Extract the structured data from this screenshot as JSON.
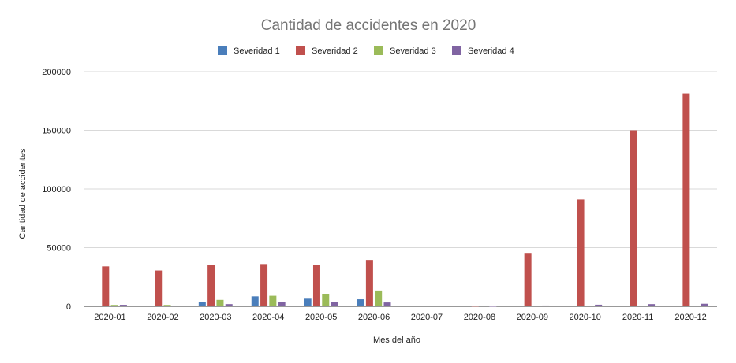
{
  "chart_data": {
    "type": "bar",
    "title": "Cantidad de accidentes en 2020",
    "xlabel": "Mes del año",
    "ylabel": "Cantidad de accidentes",
    "categories": [
      "2020-01",
      "2020-02",
      "2020-03",
      "2020-04",
      "2020-05",
      "2020-06",
      "2020-07",
      "2020-08",
      "2020-09",
      "2020-10",
      "2020-11",
      "2020-12"
    ],
    "series": [
      {
        "name": "Severidad 1",
        "color": "#4a7ebb",
        "values": [
          0,
          0,
          4000,
          8500,
          6500,
          6000,
          0,
          0,
          0,
          0,
          0,
          0
        ]
      },
      {
        "name": "Severidad 2",
        "color": "#c0504d",
        "values": [
          34000,
          30500,
          35000,
          36000,
          35000,
          39500,
          0,
          200,
          45500,
          91000,
          150000,
          181500
        ]
      },
      {
        "name": "Severidad 3",
        "color": "#9bbb59",
        "values": [
          1200,
          1200,
          5500,
          9000,
          10500,
          13500,
          0,
          0,
          0,
          0,
          0,
          0
        ]
      },
      {
        "name": "Severidad 4",
        "color": "#8064a2",
        "values": [
          1300,
          600,
          1900,
          3400,
          3400,
          3300,
          0,
          100,
          700,
          1400,
          1900,
          2200
        ]
      }
    ],
    "yticks": [
      0,
      50000,
      100000,
      150000,
      200000
    ],
    "ylim": [
      0,
      200000
    ],
    "grid": true,
    "legend_position": "top"
  }
}
